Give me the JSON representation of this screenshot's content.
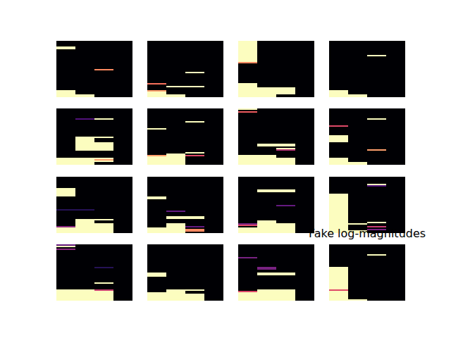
{
  "chart_data": {
    "type": "heatmap",
    "title": "Fake log-magnitudes",
    "tick_labels": false,
    "xlim": [
      0,
      4
    ],
    "ylim": [
      0,
      40
    ],
    "color": "magma",
    "color_range": [
      0,
      1
    ],
    "panels": [
      [
        {
          "cells": [
            [
              0,
              1,
              34,
              36,
              1
            ],
            [
              0,
              1,
              0,
              5,
              1
            ],
            [
              1,
              2,
              0,
              2,
              1
            ],
            [
              2,
              3,
              19,
              20,
              0.75
            ]
          ]
        },
        {
          "cells": [
            [
              2,
              3,
              17,
              18,
              1
            ],
            [
              1,
              3,
              7,
              8,
              1
            ],
            [
              0,
              1,
              9,
              10,
              0.7
            ],
            [
              0,
              1,
              0,
              4,
              1
            ],
            [
              0,
              1,
              4,
              5,
              0.8
            ],
            [
              1,
              2,
              0,
              2,
              1
            ]
          ]
        },
        {
          "cells": [
            [
              0,
              1,
              25,
              40,
              1
            ],
            [
              0,
              1,
              24,
              25,
              0.75
            ],
            [
              0,
              1,
              0,
              10,
              1
            ],
            [
              1,
              3,
              2,
              7,
              1
            ],
            [
              1,
              2,
              0,
              2,
              1
            ]
          ]
        },
        {
          "cells": [
            [
              2,
              3,
              29,
              30,
              1
            ],
            [
              0,
              1,
              0,
              5,
              1
            ],
            [
              1,
              2,
              0,
              2,
              1
            ]
          ]
        }
      ],
      [
        {
          "cells": [
            [
              1,
              2,
              32,
              33,
              0.25
            ],
            [
              2,
              3,
              32,
              33,
              1
            ],
            [
              2,
              3,
              19,
              20,
              1
            ],
            [
              1,
              2,
              10,
              20,
              1
            ],
            [
              2,
              3,
              10,
              16,
              1
            ],
            [
              0,
              2,
              0,
              5,
              1
            ],
            [
              2,
              3,
              2,
              5,
              1
            ],
            [
              2,
              3,
              3,
              4,
              0.8
            ]
          ]
        },
        {
          "cells": [
            [
              0,
              1,
              25,
              26,
              1
            ],
            [
              2,
              3,
              30,
              31,
              1
            ],
            [
              0,
              1,
              0,
              6,
              1
            ],
            [
              0,
              1,
              6,
              7,
              0.8
            ],
            [
              1,
              2,
              0,
              7,
              1
            ],
            [
              1,
              2,
              7,
              8,
              1
            ],
            [
              2,
              3,
              8,
              9,
              1
            ],
            [
              2,
              3,
              6,
              7,
              0.6
            ]
          ]
        },
        {
          "cells": [
            [
              0,
              1,
              39,
              40,
              1
            ],
            [
              0,
              1,
              37,
              38,
              0.65
            ],
            [
              1,
              3,
              13,
              15,
              1
            ],
            [
              2,
              3,
              10,
              11,
              0.5
            ],
            [
              2,
              3,
              11,
              12,
              1
            ],
            [
              0,
              2,
              0,
              7,
              1
            ],
            [
              2,
              3,
              0,
              5,
              1
            ]
          ]
        },
        {
          "cells": [
            [
              0,
              1,
              27,
              28,
              0.6
            ],
            [
              0,
              1,
              16,
              21,
              1
            ],
            [
              2,
              3,
              32,
              33,
              1
            ],
            [
              2,
              3,
              10,
              11,
              0.8
            ],
            [
              0,
              1,
              0,
              5,
              1
            ],
            [
              1,
              2,
              0,
              2,
              1
            ]
          ]
        }
      ],
      [
        {
          "cells": [
            [
              0,
              1,
              26,
              32,
              1
            ],
            [
              0,
              2,
              16,
              17,
              0.15
            ],
            [
              0,
              1,
              0,
              4,
              1
            ],
            [
              0,
              1,
              4,
              5,
              0.4
            ],
            [
              1,
              2,
              0,
              10,
              1
            ],
            [
              2,
              3,
              0,
              7,
              1
            ],
            [
              2,
              3,
              9,
              10,
              1
            ]
          ]
        },
        {
          "cells": [
            [
              0,
              1,
              24,
              26,
              1
            ],
            [
              1,
              2,
              15,
              16,
              0.3
            ],
            [
              1,
              3,
              10,
              12,
              1
            ],
            [
              0,
              1,
              0,
              4,
              1
            ],
            [
              1,
              2,
              0,
              7,
              1
            ],
            [
              2,
              3,
              4,
              5,
              0.3
            ],
            [
              2,
              3,
              1,
              3,
              0.75
            ]
          ]
        },
        {
          "cells": [
            [
              1,
              3,
              29,
              31,
              1
            ],
            [
              2,
              3,
              19,
              20,
              0.3
            ],
            [
              0,
              1,
              6,
              7,
              0.35
            ],
            [
              0,
              1,
              5,
              6,
              0.6
            ],
            [
              0,
              1,
              0,
              4,
              1
            ],
            [
              1,
              2,
              0,
              9,
              1
            ],
            [
              2,
              3,
              0,
              7,
              1
            ]
          ]
        },
        {
          "cells": [
            [
              0,
              1,
              0,
              28,
              1
            ],
            [
              2,
              3,
              34,
              35,
              1
            ],
            [
              2,
              3,
              33,
              34,
              0.25
            ],
            [
              1,
              2,
              6,
              7,
              1
            ],
            [
              1,
              2,
              0,
              2,
              1
            ],
            [
              2,
              3,
              7,
              8,
              1
            ],
            [
              2,
              3,
              4,
              5,
              0.55
            ],
            [
              2,
              3,
              2,
              3,
              0.35
            ]
          ]
        }
      ],
      [
        {
          "cells": [
            [
              0,
              1,
              39,
              40,
              0.3
            ],
            [
              0,
              1,
              38,
              39,
              1
            ],
            [
              0,
              1,
              36,
              37,
              0.4
            ],
            [
              0,
              2,
              0,
              8,
              1
            ],
            [
              2,
              3,
              23,
              24,
              0.15
            ],
            [
              2,
              3,
              12,
              13,
              1
            ],
            [
              2,
              3,
              0,
              7,
              1
            ],
            [
              2,
              3,
              7,
              8,
              0.55
            ]
          ]
        },
        {
          "cells": [
            [
              0,
              1,
              17,
              20,
              1
            ],
            [
              0,
              1,
              0,
              6,
              1
            ],
            [
              1,
              2,
              0,
              8,
              1
            ],
            [
              2,
              3,
              7,
              8,
              1
            ],
            [
              2,
              3,
              0,
              5,
              1
            ]
          ]
        },
        {
          "cells": [
            [
              0,
              1,
              30,
              31,
              0.35
            ],
            [
              1,
              2,
              22,
              24,
              0.35
            ],
            [
              1,
              3,
              18,
              20,
              1
            ],
            [
              0,
              1,
              0,
              6,
              1
            ],
            [
              0,
              1,
              6,
              7,
              0.6
            ],
            [
              1,
              3,
              0,
              8,
              1
            ]
          ]
        },
        {
          "cells": [
            [
              0,
              1,
              0,
              24,
              1
            ],
            [
              0,
              1,
              7,
              8,
              0.6
            ],
            [
              1,
              2,
              0,
              1,
              1
            ],
            [
              2,
              3,
              32,
              33,
              1
            ]
          ]
        }
      ]
    ]
  }
}
